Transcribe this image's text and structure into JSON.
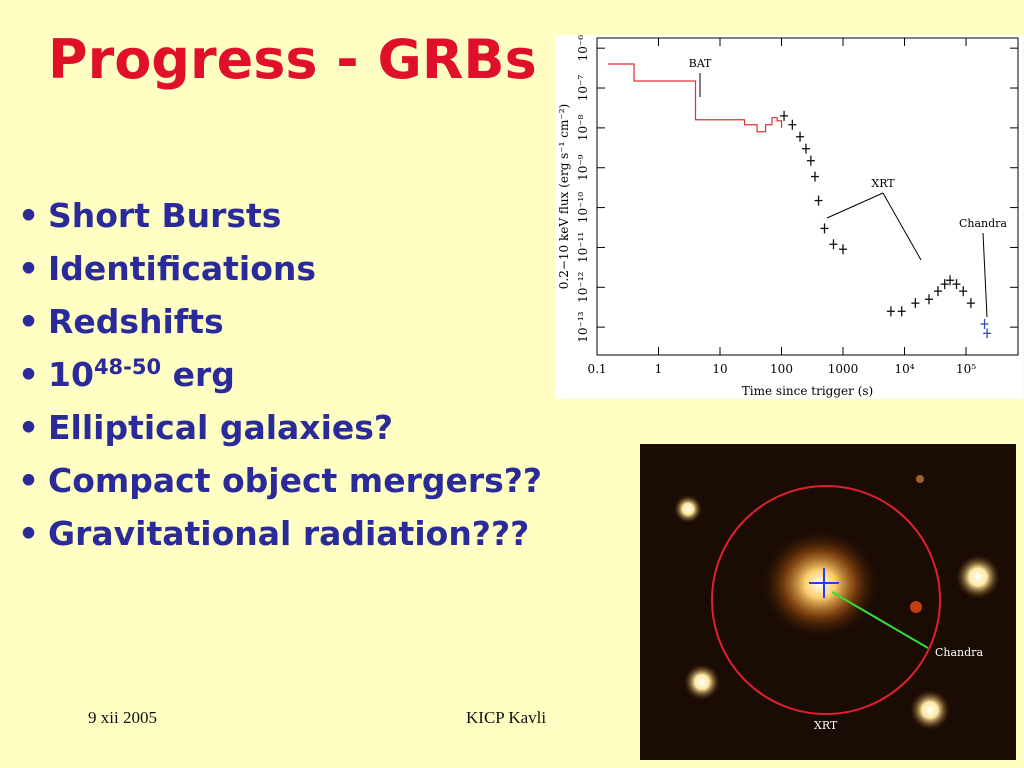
{
  "slide": {
    "title": "Progress - GRBs",
    "bullets": [
      "Short Bursts",
      "Identifications",
      "Redshifts",
      {
        "base": "10",
        "sup": "48-50",
        "rest": "erg"
      },
      "Elliptical galaxies?",
      "Compact object mergers??",
      "Gravitational radiation???"
    ],
    "footer_left": "9 xii 2005",
    "footer_center": "KICP Kavli"
  },
  "plot": {
    "xlabel": "Time since trigger (s)",
    "ylabel": "0.2−10 keV flux (erg s⁻¹ cm⁻²)",
    "log_x": true,
    "log_y": true,
    "xlim": [
      0.1,
      700000
    ],
    "ylim": [
      2e-14,
      1.8e-06
    ],
    "xticks": [
      0.1,
      1,
      10,
      100,
      1000,
      {
        "value": 10000,
        "label": "10⁴"
      },
      {
        "value": 100000,
        "label": "10⁵"
      }
    ],
    "yticks": [
      {
        "value": 1e-13,
        "label": "10⁻¹³"
      },
      {
        "value": 1e-12,
        "label": "10⁻¹²"
      },
      {
        "value": 1e-11,
        "label": "10⁻¹¹"
      },
      {
        "value": 1e-10,
        "label": "10⁻¹⁰"
      },
      {
        "value": 1e-09,
        "label": "10⁻⁹"
      },
      {
        "value": 1e-08,
        "label": "10⁻⁸"
      },
      {
        "value": 1e-07,
        "label": "10⁻⁷"
      },
      {
        "value": 1e-06,
        "label": "10⁻⁶"
      }
    ],
    "annotations": [
      "BAT",
      "XRT",
      "Chandra"
    ],
    "series": [
      {
        "name": "BAT",
        "color": "#e03030",
        "style": "step",
        "x": [
          0.15,
          0.4,
          4,
          15,
          25,
          40,
          55,
          70,
          85,
          100
        ],
        "y": [
          4e-07,
          1.5e-07,
          1.6e-08,
          1.6e-08,
          1.2e-08,
          8e-09,
          1.2e-08,
          1.8e-08,
          1.5e-08,
          1e-08
        ]
      },
      {
        "name": "XRT",
        "color": "#111111",
        "style": "points",
        "x": [
          110,
          150,
          200,
          250,
          300,
          350,
          400,
          500,
          700,
          1000,
          6000,
          9000,
          15000,
          25000,
          35000,
          45000,
          55000,
          70000,
          90000,
          120000
        ],
        "y": [
          2e-08,
          1.2e-08,
          6e-09,
          3e-09,
          1.5e-09,
          6e-10,
          1.5e-10,
          3e-11,
          1.2e-11,
          9e-12,
          2.5e-13,
          2.5e-13,
          4e-13,
          5e-13,
          8e-13,
          1.2e-12,
          1.5e-12,
          1.2e-12,
          8e-13,
          4e-13
        ]
      },
      {
        "name": "Chandra",
        "color": "#3050c0",
        "style": "points",
        "x": [
          200000,
          220000
        ],
        "y": [
          1.2e-13,
          7e-14
        ]
      }
    ]
  },
  "image": {
    "labels": [
      "Chandra",
      "XRT"
    ]
  }
}
